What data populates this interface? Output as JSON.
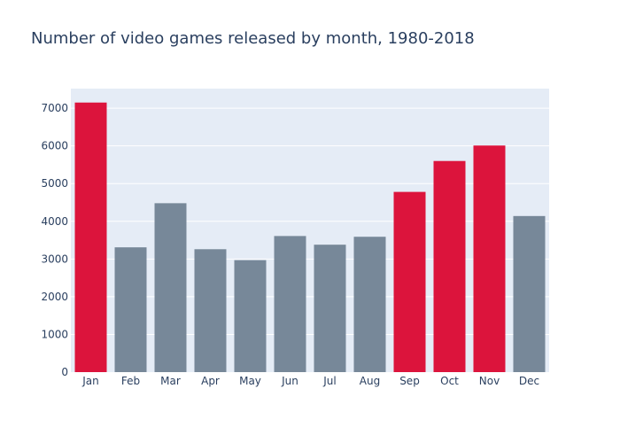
{
  "chart_data": {
    "type": "bar",
    "title": "Number of video games released by month, 1980-2018",
    "xlabel": "",
    "ylabel": "",
    "categories": [
      "Jan",
      "Feb",
      "Mar",
      "Apr",
      "May",
      "Jun",
      "Jul",
      "Aug",
      "Sep",
      "Oct",
      "Nov",
      "Dec"
    ],
    "values": [
      7150,
      3310,
      4480,
      3260,
      2970,
      3610,
      3380,
      3590,
      4780,
      5600,
      6010,
      4140
    ],
    "highlight": [
      true,
      false,
      false,
      false,
      false,
      false,
      false,
      false,
      true,
      true,
      true,
      false
    ],
    "ylim": [
      0,
      7520
    ],
    "yticks": [
      0,
      1000,
      2000,
      3000,
      4000,
      5000,
      6000,
      7000
    ],
    "grid": true,
    "colors": {
      "highlight": "#dc143c",
      "default": "#778899",
      "plot_background": "#e5ecf6",
      "gridline": "#ffffff"
    }
  }
}
